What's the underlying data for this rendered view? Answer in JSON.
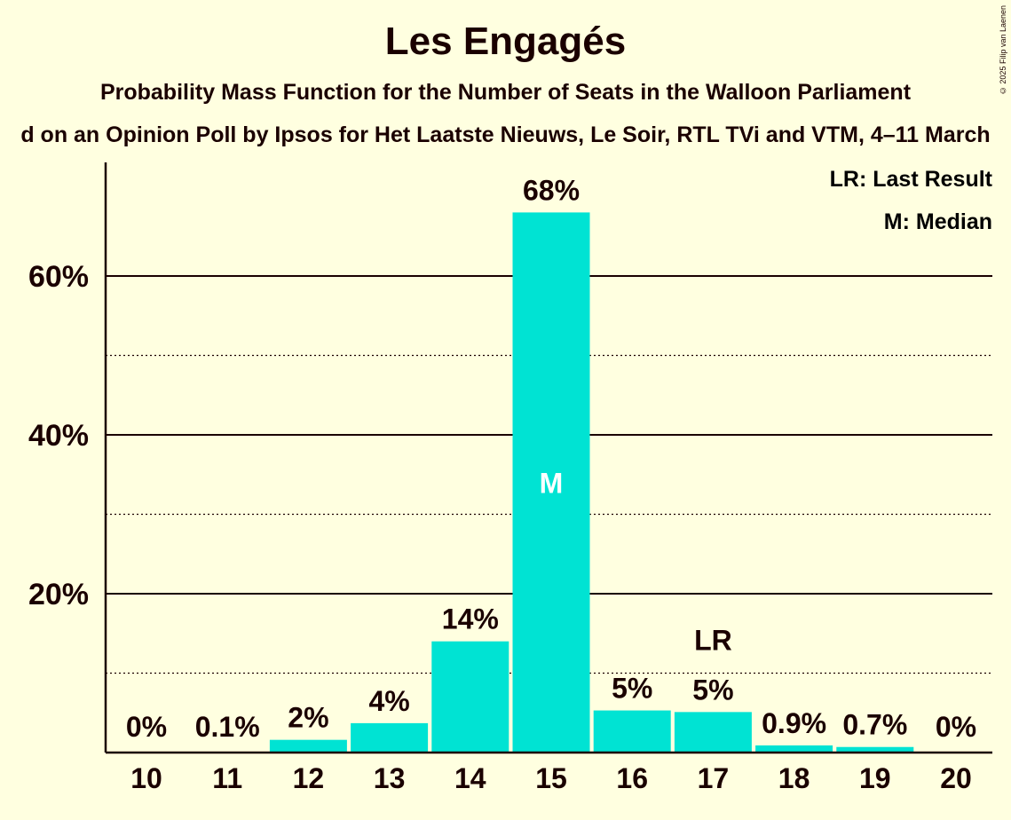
{
  "title": "Les Engagés",
  "subtitle": "Probability Mass Function for the Number of Seats in the Walloon Parliament",
  "subsubtitle": "d on an Opinion Poll by Ipsos for Het Laatste Nieuws, Le Soir, RTL TVi and VTM, 4–11 March",
  "copyright": "© 2025 Filip van Laenen",
  "legend": {
    "last_result": "LR: Last Result",
    "median": "M: Median"
  },
  "colors": {
    "bar": "#00e3d3",
    "background": "#ffffe0",
    "text": "#1a0000"
  },
  "chart_data": {
    "type": "bar",
    "categories": [
      "10",
      "11",
      "12",
      "13",
      "14",
      "15",
      "16",
      "17",
      "18",
      "19",
      "20"
    ],
    "values": [
      0,
      0.1,
      1.6,
      3.7,
      14,
      68,
      5.3,
      5.1,
      0.9,
      0.7,
      0
    ],
    "data_labels": [
      "0%",
      "0.1%",
      "2%",
      "4%",
      "14%",
      "68%",
      "5%",
      "5%",
      "0.9%",
      "0.7%",
      "0%"
    ],
    "ylim": [
      0,
      74
    ],
    "yticks": [
      20,
      40,
      60
    ],
    "ytick_labels": [
      "20%",
      "40%",
      "60%"
    ],
    "minor_gridlines": [
      10,
      30,
      50
    ],
    "median_category": "15",
    "median_marker": "M",
    "last_result_category": "17",
    "last_result_marker": "LR",
    "legend_position": "top-right"
  }
}
